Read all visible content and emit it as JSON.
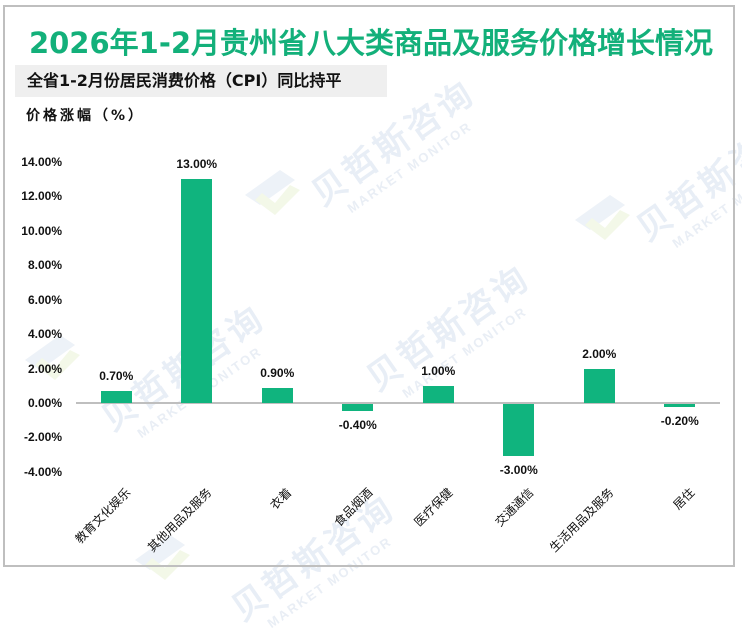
{
  "header": {
    "title": "2026年1-2月贵州省八大类商品及服务价格增长情况",
    "subtitle": "全省1-2月份居民消费价格（CPI）同比持平",
    "unit_label": "价格涨幅（%）"
  },
  "watermark": {
    "cn": "贝哲斯咨询",
    "en": "MARKET MONITOR"
  },
  "colors": {
    "title": "#13b07a",
    "bar": "#10b47e",
    "axis": "#bfbfbf",
    "subtitle_bg": "#efefef"
  },
  "y_ticks": [
    "14.00%",
    "12.00%",
    "10.00%",
    "8.00%",
    "6.00%",
    "4.00%",
    "2.00%",
    "0.00%",
    "-2.00%",
    "-4.00%"
  ],
  "chart_data": {
    "type": "bar",
    "title": "2026年1-2月贵州省八大类商品及服务价格增长情况",
    "subtitle": "全省1-2月份居民消费价格（CPI）同比持平",
    "xlabel": "",
    "ylabel": "价格涨幅（%）",
    "ylim": [
      -4,
      14
    ],
    "yticks": [
      14,
      12,
      10,
      8,
      6,
      4,
      2,
      0,
      -2,
      -4
    ],
    "grid": false,
    "legend": "none",
    "categories": [
      "教育文化娱乐",
      "其他用品及服务",
      "衣着",
      "食品烟酒",
      "医疗保健",
      "交通通信",
      "生活用品及服务",
      "居住"
    ],
    "values": [
      0.7,
      13.0,
      0.9,
      -0.4,
      1.0,
      -3.0,
      2.0,
      -0.2
    ],
    "value_labels": [
      "0.70%",
      "13.00%",
      "0.90%",
      "-0.40%",
      "1.00%",
      "-3.00%",
      "2.00%",
      "-0.20%"
    ]
  }
}
